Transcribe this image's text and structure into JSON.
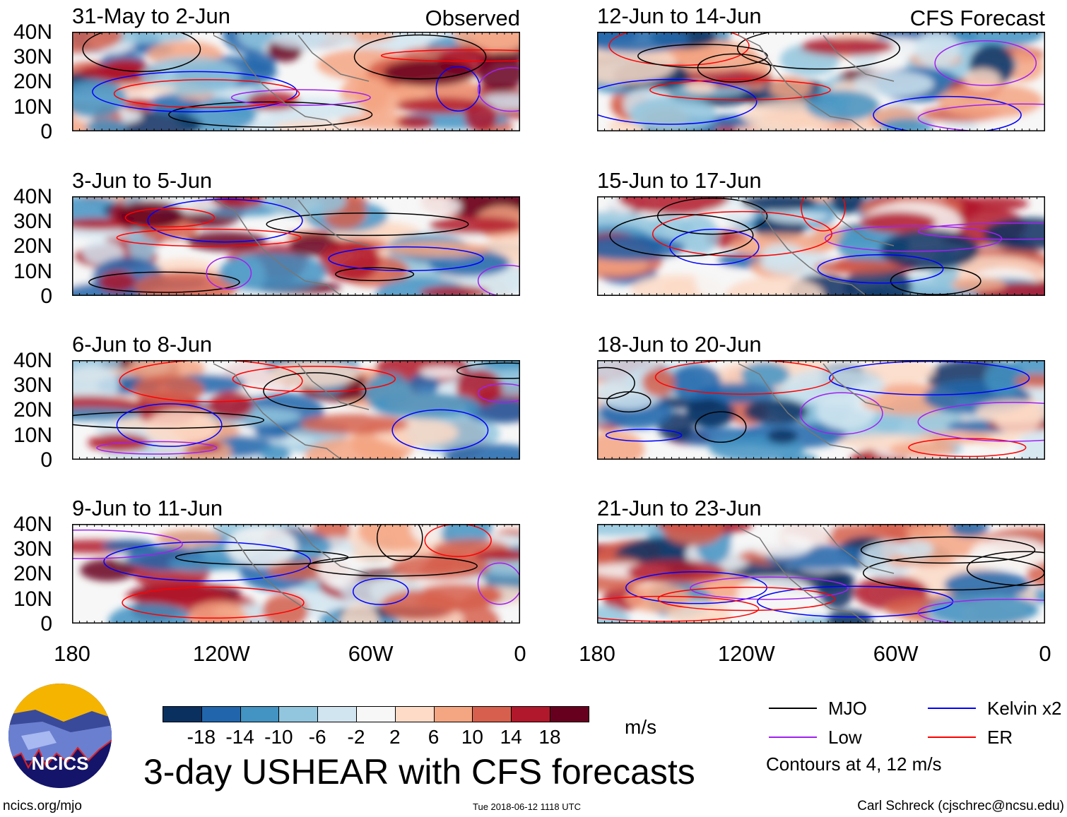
{
  "panels": [
    {
      "title": "31-May to 2-Jun",
      "label": "Observed",
      "column": "left"
    },
    {
      "title": "3-Jun to 5-Jun",
      "column": "left"
    },
    {
      "title": "6-Jun to 8-Jun",
      "column": "left"
    },
    {
      "title": "9-Jun to 11-Jun",
      "column": "left"
    },
    {
      "title": "12-Jun to 14-Jun",
      "label": "CFS Forecast",
      "column": "right"
    },
    {
      "title": "15-Jun to 17-Jun",
      "column": "right"
    },
    {
      "title": "18-Jun to 20-Jun",
      "column": "right"
    },
    {
      "title": "21-Jun to 23-Jun",
      "column": "right"
    }
  ],
  "lat_ticks": [
    "40N",
    "30N",
    "20N",
    "10N",
    "0"
  ],
  "lon_ticks": [
    "180",
    "120W",
    "60W",
    "0"
  ],
  "colorbar": {
    "colors": [
      "#0a3060",
      "#2166ac",
      "#4393c3",
      "#92c5de",
      "#d1e5f0",
      "#f7f7f7",
      "#fddbc7",
      "#f4a582",
      "#d6604d",
      "#b2182b",
      "#67001f"
    ],
    "labels": [
      "-18",
      "-14",
      "-10",
      "-6",
      "-2",
      "2",
      "6",
      "10",
      "14",
      "18"
    ],
    "units": "m/s"
  },
  "legend": {
    "items": [
      {
        "label": "MJO",
        "color": "#000000"
      },
      {
        "label": "Kelvin x2",
        "color": "#0000ff"
      },
      {
        "label": "Low",
        "color": "#a020f0"
      },
      {
        "label": "ER",
        "color": "#ff0000"
      }
    ],
    "note": "Contours at 4, 12 m/s"
  },
  "title": "3-day USHEAR with CFS forecasts",
  "logo_text": "NCICS",
  "footer": {
    "left": "ncics.org/mjo",
    "center": "Tue 2018-06-12 1118 UTC",
    "right": "Carl Schreck (cjschrec@ncsu.edu)"
  }
}
